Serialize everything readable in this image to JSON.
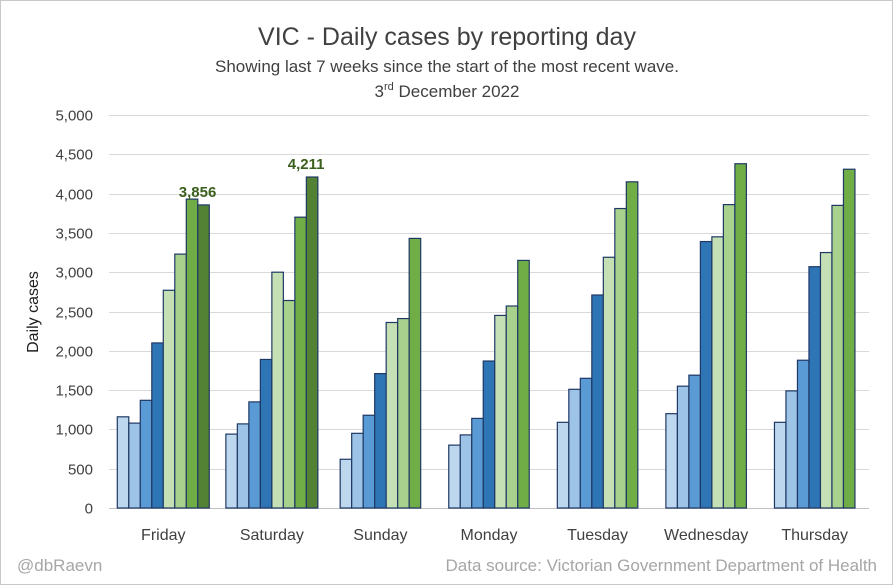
{
  "chart_data": {
    "type": "bar",
    "title": "VIC - Daily cases by reporting day",
    "subtitle": "Showing last 7 weeks since the start of the most recent wave.",
    "date_prefix": "3",
    "date_sup": "rd",
    "date_suffix": " December 2022",
    "ylabel": "Daily cases",
    "ylim": [
      0,
      5000
    ],
    "yticks": [
      "0",
      "500",
      "1,000",
      "1,500",
      "2,000",
      "2,500",
      "3,000",
      "3,500",
      "4,000",
      "4,500",
      "5,000"
    ],
    "ytick_values": [
      0,
      500,
      1000,
      1500,
      2000,
      2500,
      3000,
      3500,
      4000,
      4500,
      5000
    ],
    "grid": true,
    "categories": [
      "Friday",
      "Saturday",
      "Sunday",
      "Monday",
      "Tuesday",
      "Wednesday",
      "Thursday"
    ],
    "series": [
      {
        "color": "#bdd7ee",
        "values": [
          1160,
          940,
          620,
          800,
          1090,
          1200,
          1090
        ]
      },
      {
        "color": "#9dc3e6",
        "values": [
          1080,
          1070,
          950,
          930,
          1510,
          1550,
          1490
        ]
      },
      {
        "color": "#5b9bd5",
        "values": [
          1370,
          1350,
          1180,
          1140,
          1650,
          1690,
          1880
        ]
      },
      {
        "color": "#2e75b6",
        "values": [
          2100,
          1890,
          1710,
          1870,
          2710,
          3390,
          3070
        ]
      },
      {
        "color": "#c5e0b4",
        "values": [
          2770,
          3000,
          2360,
          2450,
          3190,
          3450,
          3250
        ]
      },
      {
        "color": "#a9d18e",
        "values": [
          3230,
          2640,
          2410,
          2570,
          3810,
          3860,
          3850
        ]
      },
      {
        "color": "#70ad47",
        "values": [
          3930,
          3700,
          3430,
          3150,
          4150,
          4380,
          4310
        ]
      },
      {
        "color": "#548235",
        "values": [
          3856,
          4211,
          null,
          null,
          null,
          null,
          null
        ]
      }
    ],
    "data_labels": [
      {
        "series": 7,
        "category": 0,
        "text": "3,856"
      },
      {
        "series": 7,
        "category": 1,
        "text": "4,211"
      }
    ],
    "bar_stroke": "#1f3864",
    "credit_left": "@dbRaevn",
    "credit_right": "Data source: Victorian Government Department of Health"
  }
}
